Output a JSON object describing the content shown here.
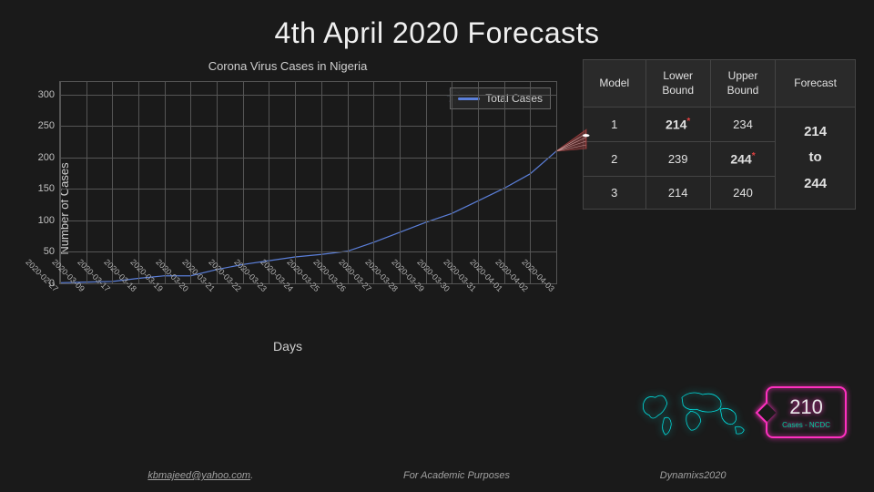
{
  "title": "4th April 2020 Forecasts",
  "chart": {
    "type": "line",
    "title": "Corona Virus Cases in Nigeria",
    "xlabel": "Days",
    "ylabel": "Number of Cases",
    "ylim": [
      0,
      320
    ],
    "ytick_step": 50,
    "yticks": [
      0,
      50,
      100,
      150,
      200,
      250,
      300
    ],
    "line_color": "#5b7fd9",
    "line_width": 3,
    "grid_color": "#555555",
    "background_color": "#1a1a1a",
    "text_color": "#d0d0d0",
    "legend_label": "Total Cases",
    "x_labels": [
      "2020-02-27",
      "2020-03-09",
      "2020-03-17",
      "2020-03-18",
      "2020-03-19",
      "2020-03-20",
      "2020-03-21",
      "2020-03-22",
      "2020-03-23",
      "2020-03-24",
      "2020-03-25",
      "2020-03-26",
      "2020-03-27",
      "2020-03-28",
      "2020-03-29",
      "2020-03-30",
      "2020-03-31",
      "2020-04-01",
      "2020-04-02",
      "2020-04-03"
    ],
    "values": [
      1,
      2,
      3,
      8,
      12,
      12,
      22,
      30,
      36,
      42,
      46,
      51,
      65,
      81,
      97,
      111,
      131,
      151,
      174,
      210
    ],
    "forecast_color": "#8b3a3a",
    "forecast_low": 214,
    "forecast_high": 244,
    "forecast_point": 235
  },
  "table": {
    "headers": [
      "Model",
      "Lower Bound",
      "Upper Bound",
      "Forecast"
    ],
    "rows": [
      {
        "model": "1",
        "lower": "214",
        "lower_bold": true,
        "lower_star": true,
        "upper": "234",
        "upper_bold": false,
        "upper_star": false
      },
      {
        "model": "2",
        "lower": "239",
        "lower_bold": false,
        "lower_star": false,
        "upper": "244",
        "upper_bold": true,
        "upper_star": true
      },
      {
        "model": "3",
        "lower": "214",
        "lower_bold": false,
        "lower_star": false,
        "upper": "240",
        "upper_bold": false,
        "upper_star": false
      }
    ],
    "forecast_text": {
      "low": "214",
      "mid": "to",
      "high": "244"
    },
    "cell_bg": "#242424",
    "header_bg": "#2a2a2a",
    "border_color": "#444444"
  },
  "tag": {
    "value": "210",
    "source": "Cases - NCDC",
    "border_color": "#ff30c0",
    "map_glow_color": "#00e0e0"
  },
  "footer": {
    "email": "kbmajeed@yahoo.com",
    "note": "For Academic Purposes",
    "brand": "Dynamixs2020"
  }
}
